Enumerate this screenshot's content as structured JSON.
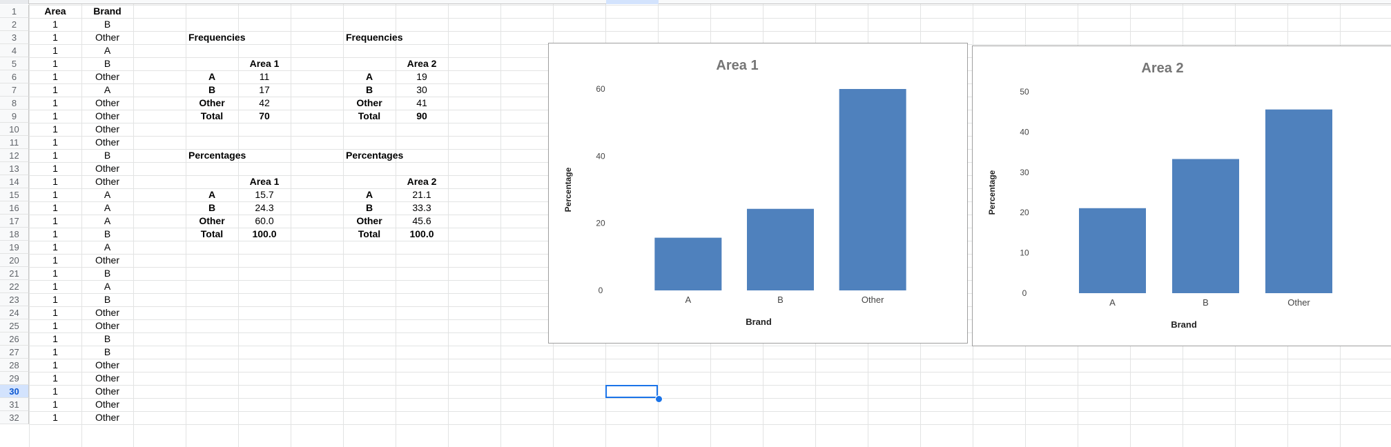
{
  "grid": {
    "row_numbers": [
      "1",
      "2",
      "3",
      "4",
      "5",
      "6",
      "7",
      "8",
      "9",
      "10",
      "11",
      "12",
      "13",
      "14",
      "15",
      "16",
      "17",
      "18",
      "19",
      "20",
      "21",
      "22",
      "23",
      "24",
      "25",
      "26",
      "27",
      "28",
      "29",
      "30",
      "31",
      "32"
    ],
    "active_row": "30",
    "headers": {
      "area": "Area",
      "brand": "Brand"
    },
    "area_values": [
      "1",
      "1",
      "1",
      "1",
      "1",
      "1",
      "1",
      "1",
      "1",
      "1",
      "1",
      "1",
      "1",
      "1",
      "1",
      "1",
      "1",
      "1",
      "1",
      "1",
      "1",
      "1",
      "1",
      "1",
      "1",
      "1",
      "1",
      "1",
      "1",
      "1",
      "1"
    ],
    "brand_values": [
      "B",
      "Other",
      "A",
      "B",
      "Other",
      "A",
      "Other",
      "Other",
      "Other",
      "Other",
      "B",
      "Other",
      "Other",
      "A",
      "A",
      "A",
      "B",
      "A",
      "Other",
      "B",
      "A",
      "B",
      "Other",
      "Other",
      "B",
      "B",
      "Other",
      "Other",
      "Other",
      "Other",
      "Other"
    ]
  },
  "frequencies": {
    "left": {
      "title": "Frequencies",
      "header": "Area 1",
      "rows": [
        {
          "label": "A",
          "value": "11"
        },
        {
          "label": "B",
          "value": "17"
        },
        {
          "label": "Other",
          "value": "42"
        },
        {
          "label": "Total",
          "value": "70"
        }
      ]
    },
    "right": {
      "title": "Frequencies",
      "header": "Area 2",
      "rows": [
        {
          "label": "A",
          "value": "19"
        },
        {
          "label": "B",
          "value": "30"
        },
        {
          "label": "Other",
          "value": "41"
        },
        {
          "label": "Total",
          "value": "90"
        }
      ]
    }
  },
  "percentages": {
    "left": {
      "title": "Percentages",
      "header": "Area 1",
      "rows": [
        {
          "label": "A",
          "value": "15.7"
        },
        {
          "label": "B",
          "value": "24.3"
        },
        {
          "label": "Other",
          "value": "60.0"
        },
        {
          "label": "Total",
          "value": "100.0"
        }
      ]
    },
    "right": {
      "title": "Percentages",
      "header": "Area 2",
      "rows": [
        {
          "label": "A",
          "value": "21.1"
        },
        {
          "label": "B",
          "value": "33.3"
        },
        {
          "label": "Other",
          "value": "45.6"
        },
        {
          "label": "Total",
          "value": "100.0"
        }
      ]
    }
  },
  "colors": {
    "bar": "#4f81bd",
    "title": "#757575",
    "selection": "#1a73e8"
  },
  "chart_data": [
    {
      "type": "bar",
      "title": "Area 1",
      "xlabel": "Brand",
      "ylabel": "Percentage",
      "categories": [
        "A",
        "B",
        "Other"
      ],
      "values": [
        15.7,
        24.3,
        60.0
      ],
      "ylim": [
        0,
        60
      ],
      "yticks": [
        "0",
        "20",
        "40",
        "60"
      ],
      "grid": false,
      "legend": "none"
    },
    {
      "type": "bar",
      "title": "Area 2",
      "xlabel": "Brand",
      "ylabel": "Percentage",
      "categories": [
        "A",
        "B",
        "Other"
      ],
      "values": [
        21.1,
        33.3,
        45.6
      ],
      "ylim": [
        0,
        50
      ],
      "yticks": [
        "0",
        "10",
        "20",
        "30",
        "40",
        "50"
      ],
      "grid": false,
      "legend": "none"
    }
  ]
}
